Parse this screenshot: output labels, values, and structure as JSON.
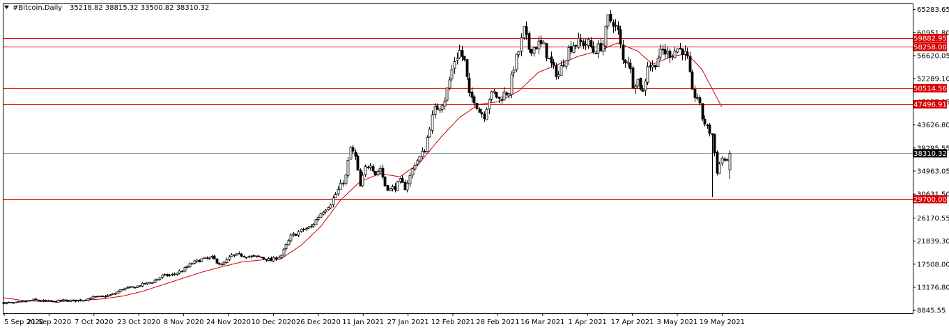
{
  "header": {
    "symbol_timeframe": "#Bitcoin,Daily",
    "ohlc": "35218.82 38815.32 33500.82 38310.32"
  },
  "chart_data": {
    "type": "candlestick",
    "colors": {
      "bull": "#ffffff",
      "bear": "#000000",
      "wick": "#000000",
      "ma": "#cc0000",
      "level": "#dd0000",
      "current": "#8a9aa0"
    },
    "y_axis": {
      "ticks": [
        "65283.65",
        "60951.80",
        "56620.05",
        "52289.10",
        "47957.35",
        "43626.80",
        "39295.55",
        "34963.05",
        "30631.50",
        "26170.55",
        "21839.30",
        "17508.00",
        "13176.80",
        "8845.55"
      ],
      "ylim": [
        8345,
        66283
      ]
    },
    "x_axis": {
      "ticks": [
        "5 Sep 2020",
        "21 Sep 2020",
        "7 Oct 2020",
        "23 Oct 2020",
        "8 Nov 2020",
        "24 Nov 2020",
        "10 Dec 2020",
        "26 Dec 2020",
        "11 Jan 2021",
        "27 Jan 2021",
        "12 Feb 2021",
        "28 Feb 2021",
        "16 Mar 2021",
        "1 Apr 2021",
        "17 Apr 2021",
        "3 May 2021",
        "19 May 2021"
      ]
    },
    "levels": [
      {
        "value": 59882.95,
        "label": "59882.95"
      },
      {
        "value": 58258.0,
        "label": "58258.00"
      },
      {
        "value": 50514.56,
        "label": "50514.56"
      },
      {
        "value": 47496.91,
        "label": "47496.91"
      },
      {
        "value": 29700.0,
        "label": "29700.00"
      }
    ],
    "current_price": {
      "value": 38310.32,
      "label": "38310.32"
    },
    "close_path": [
      [
        0,
        10300
      ],
      [
        4,
        10200
      ],
      [
        8,
        10450
      ],
      [
        12,
        10800
      ],
      [
        16,
        10600
      ],
      [
        20,
        10450
      ],
      [
        24,
        10700
      ],
      [
        28,
        10650
      ],
      [
        32,
        10800
      ],
      [
        36,
        11300
      ],
      [
        40,
        11400
      ],
      [
        44,
        11800
      ],
      [
        48,
        12900
      ],
      [
        52,
        13100
      ],
      [
        56,
        13700
      ],
      [
        60,
        14200
      ],
      [
        64,
        15300
      ],
      [
        68,
        15500
      ],
      [
        72,
        16300
      ],
      [
        76,
        17700
      ],
      [
        80,
        18400
      ],
      [
        84,
        18700
      ],
      [
        88,
        17300
      ],
      [
        92,
        19100
      ],
      [
        96,
        19200
      ],
      [
        100,
        18900
      ],
      [
        104,
        18800
      ],
      [
        108,
        18200
      ],
      [
        112,
        19200
      ],
      [
        116,
        22700
      ],
      [
        120,
        23800
      ],
      [
        124,
        24500
      ],
      [
        128,
        27100
      ],
      [
        132,
        29000
      ],
      [
        136,
        32200
      ],
      [
        138,
        34000
      ],
      [
        140,
        39300
      ],
      [
        142,
        37500
      ],
      [
        144,
        32000
      ],
      [
        146,
        35500
      ],
      [
        148,
        36500
      ],
      [
        150,
        34500
      ],
      [
        152,
        35500
      ],
      [
        154,
        32300
      ],
      [
        156,
        31500
      ],
      [
        158,
        32000
      ],
      [
        160,
        33000
      ],
      [
        162,
        31900
      ],
      [
        164,
        34000
      ],
      [
        166,
        36500
      ],
      [
        168,
        37500
      ],
      [
        170,
        39000
      ],
      [
        172,
        43500
      ],
      [
        174,
        46500
      ],
      [
        176,
        47300
      ],
      [
        178,
        48500
      ],
      [
        180,
        52000
      ],
      [
        182,
        55800
      ],
      [
        184,
        57500
      ],
      [
        186,
        55500
      ],
      [
        188,
        48900
      ],
      [
        190,
        48500
      ],
      [
        192,
        46200
      ],
      [
        194,
        45500
      ],
      [
        196,
        48800
      ],
      [
        198,
        49600
      ],
      [
        200,
        48400
      ],
      [
        202,
        49500
      ],
      [
        204,
        50000
      ],
      [
        206,
        54600
      ],
      [
        208,
        57500
      ],
      [
        210,
        61300
      ],
      [
        212,
        58000
      ],
      [
        214,
        58200
      ],
      [
        216,
        58800
      ],
      [
        218,
        58300
      ],
      [
        220,
        55800
      ],
      [
        222,
        54000
      ],
      [
        224,
        53000
      ],
      [
        226,
        55600
      ],
      [
        228,
        57800
      ],
      [
        230,
        58800
      ],
      [
        232,
        59000
      ],
      [
        234,
        59000
      ],
      [
        236,
        58900
      ],
      [
        238,
        57500
      ],
      [
        240,
        58000
      ],
      [
        242,
        58800
      ],
      [
        244,
        63500
      ],
      [
        246,
        63000
      ],
      [
        248,
        61000
      ],
      [
        250,
        55700
      ],
      [
        252,
        56000
      ],
      [
        254,
        51500
      ],
      [
        256,
        52000
      ],
      [
        258,
        49700
      ],
      [
        260,
        55000
      ],
      [
        262,
        54500
      ],
      [
        264,
        56400
      ],
      [
        266,
        57500
      ],
      [
        268,
        57000
      ],
      [
        270,
        57200
      ],
      [
        272,
        58000
      ],
      [
        274,
        57700
      ],
      [
        276,
        55900
      ],
      [
        278,
        49500
      ],
      [
        280,
        48900
      ],
      [
        282,
        45000
      ],
      [
        284,
        43000
      ],
      [
        286,
        41800
      ],
      [
        288,
        35000
      ],
      [
        290,
        37500
      ],
      [
        292,
        36500
      ],
      [
        293,
        38310
      ]
    ],
    "ma_path": [
      [
        0,
        11200
      ],
      [
        8,
        10700
      ],
      [
        16,
        10500
      ],
      [
        24,
        10550
      ],
      [
        32,
        10700
      ],
      [
        40,
        11000
      ],
      [
        48,
        11500
      ],
      [
        56,
        12400
      ],
      [
        64,
        13600
      ],
      [
        72,
        14800
      ],
      [
        80,
        16000
      ],
      [
        88,
        17000
      ],
      [
        96,
        17900
      ],
      [
        104,
        18300
      ],
      [
        112,
        18500
      ],
      [
        120,
        21000
      ],
      [
        128,
        24500
      ],
      [
        136,
        29500
      ],
      [
        144,
        33000
      ],
      [
        152,
        34500
      ],
      [
        160,
        33900
      ],
      [
        168,
        36500
      ],
      [
        176,
        41000
      ],
      [
        184,
        45000
      ],
      [
        192,
        47500
      ],
      [
        200,
        48000
      ],
      [
        208,
        50000
      ],
      [
        216,
        53500
      ],
      [
        224,
        55000
      ],
      [
        232,
        56500
      ],
      [
        240,
        57500
      ],
      [
        248,
        59000
      ],
      [
        256,
        57500
      ],
      [
        262,
        55000
      ],
      [
        270,
        56500
      ],
      [
        276,
        57000
      ],
      [
        282,
        54000
      ],
      [
        286,
        50500
      ],
      [
        290,
        47000
      ]
    ]
  }
}
